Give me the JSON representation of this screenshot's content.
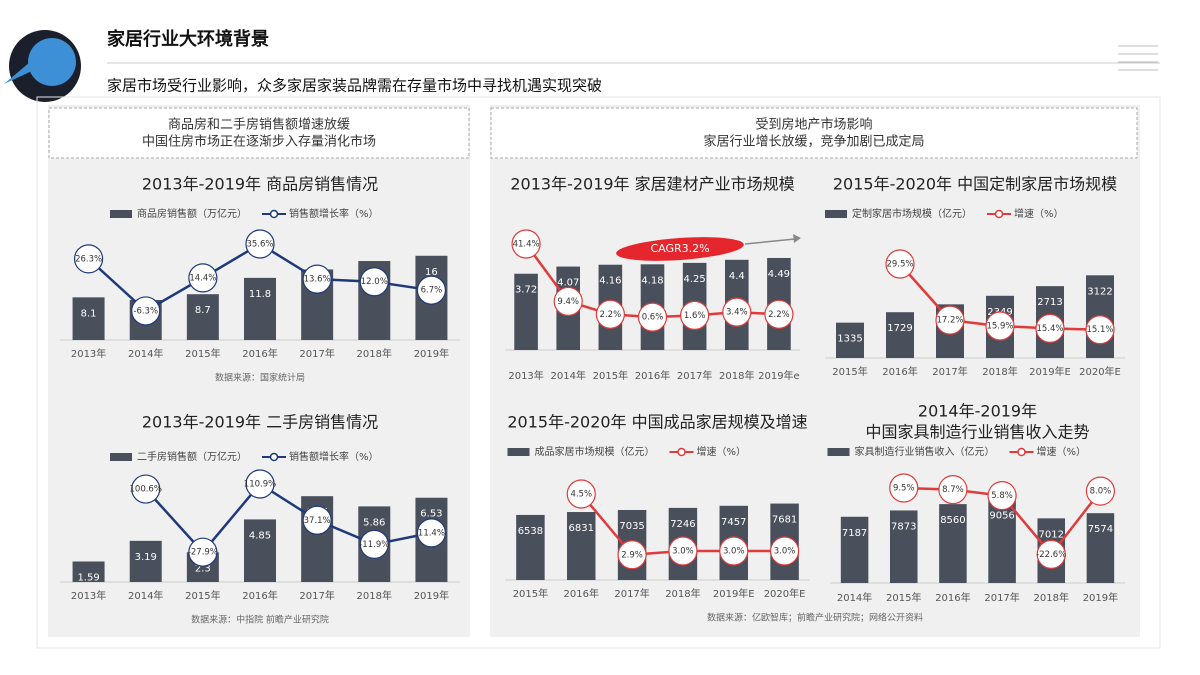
{
  "header": {
    "title": "家居行业大环境背景",
    "subtitle": "家居市场受行业影响，众多家居家装品牌需在存量市场中寻找机遇实现突破"
  },
  "panels": [
    {
      "heading": [
        "商品房和二手房销售额增速放缓",
        "中国住房市场正在逐渐步入存量消化市场"
      ]
    },
    {
      "heading": [
        "受到房地产市场影响",
        "家居行业增长放缓，竞争加剧已成定局"
      ],
      "source": "数据来源：亿欧智库；前瞻产业研究院；网络公开资料"
    }
  ],
  "chart_data": [
    {
      "type": "combo",
      "title": [
        "2013年-2019年 商品房销售情况"
      ],
      "source": "数据来源：国家统计局",
      "categories": [
        "2013年",
        "2014年",
        "2015年",
        "2016年",
        "2017年",
        "2018年",
        "2019年"
      ],
      "series": [
        {
          "name": "商品房销售额（万亿元）",
          "type": "bar",
          "color": "#4a4f5c",
          "values": [
            8.1,
            7.6,
            8.7,
            11.8,
            13.4,
            15,
            16
          ]
        },
        {
          "name": "销售额增长率（%）",
          "type": "line",
          "color": "#1f3a7a",
          "values": [
            26.3,
            -6.3,
            14.4,
            35.6,
            13.6,
            12.0,
            6.7
          ],
          "value_labels": [
            "26.3%",
            "-6.3%",
            "14.4%",
            "35.6%",
            "13.6%",
            "12.0%",
            "6.7%"
          ]
        }
      ]
    },
    {
      "type": "combo",
      "title": [
        "2013年-2019年 二手房销售情况"
      ],
      "source": "数据来源：中指院 前瞻产业研究院",
      "categories": [
        "2013年",
        "2014年",
        "2015年",
        "2016年",
        "2017年",
        "2018年",
        "2019年"
      ],
      "series": [
        {
          "name": "二手房销售额（万亿元）",
          "type": "bar",
          "color": "#4a4f5c",
          "values": [
            1.59,
            3.19,
            2.3,
            4.85,
            6.65,
            5.86,
            6.53
          ]
        },
        {
          "name": "销售额增长率（%）",
          "type": "line",
          "color": "#1f3a7a",
          "values": [
            null,
            100.6,
            -27.9,
            110.9,
            37.1,
            -11.9,
            11.4
          ],
          "value_labels": [
            null,
            "100.6%",
            "-27.9%",
            "110.9%",
            "37.1%",
            "-11.9%",
            "11.4%"
          ]
        }
      ]
    },
    {
      "type": "combo",
      "title": [
        "2013年-2019年 家居建材产业市场规模"
      ],
      "annotation": "CAGR3.2%",
      "categories": [
        "2013年",
        "2014年",
        "2015年",
        "2016年",
        "2017年",
        "2018年",
        "2019年e"
      ],
      "series": [
        {
          "type": "bar",
          "color": "#4a4f5c",
          "values": [
            3.72,
            4.07,
            4.16,
            4.18,
            4.25,
            4.4,
            4.49
          ]
        },
        {
          "type": "line",
          "color": "#e03a3a",
          "values": [
            41.4,
            9.4,
            2.2,
            0.6,
            1.6,
            3.4,
            2.2
          ],
          "value_labels": [
            "41.4%",
            "9.4%",
            "2.2%",
            "0.6%",
            "1.6%",
            "3.4%",
            "2.2%"
          ]
        }
      ]
    },
    {
      "type": "combo",
      "title": [
        "2015年-2020年 中国定制家居市场规模"
      ],
      "categories": [
        "2015年",
        "2016年",
        "2017年",
        "2018年",
        "2019年E",
        "2020年E"
      ],
      "series": [
        {
          "name": "定制家居市场规模（亿元）",
          "type": "bar",
          "color": "#4a4f5c",
          "values": [
            1335,
            1729,
            2026,
            2349,
            2713,
            3122
          ]
        },
        {
          "name": "增速（%）",
          "type": "line",
          "color": "#e03a3a",
          "values": [
            null,
            29.5,
            17.2,
            15.9,
            15.4,
            15.1
          ],
          "value_labels": [
            null,
            "29.5%",
            "17.2%",
            "15.9%",
            "15.4%",
            "15.1%"
          ]
        }
      ]
    },
    {
      "type": "combo",
      "title": [
        "2015年-2020年 中国成品家居规模及增速"
      ],
      "categories": [
        "2015年",
        "2016年",
        "2017年",
        "2018年",
        "2019年E",
        "2020年E"
      ],
      "series": [
        {
          "name": "成品家居市场规模（亿元）",
          "type": "bar",
          "color": "#4a4f5c",
          "values": [
            6538,
            6831,
            7035,
            7246,
            7457,
            7681
          ]
        },
        {
          "name": "增速（%）",
          "type": "line",
          "color": "#e03a3a",
          "values": [
            null,
            4.5,
            2.9,
            3.0,
            3.0,
            3.0
          ],
          "value_labels": [
            null,
            "4.5%",
            "2.9%",
            "3.0%",
            "3.0%",
            "3.0%"
          ]
        }
      ]
    },
    {
      "type": "combo",
      "title": [
        "2014年-2019年",
        "中国家具制造行业销售收入走势"
      ],
      "categories": [
        "2014年",
        "2015年",
        "2016年",
        "2017年",
        "2018年",
        "2019年"
      ],
      "series": [
        {
          "name": "家具制造行业销售收入（亿元）",
          "type": "bar",
          "color": "#4a4f5c",
          "values": [
            7187,
            7873,
            8560,
            9056,
            7012,
            7574
          ]
        },
        {
          "name": "增速（%）",
          "type": "line",
          "color": "#e03a3a",
          "values": [
            null,
            9.5,
            8.7,
            5.8,
            -22.6,
            8.0
          ],
          "value_labels": [
            null,
            "9.5%",
            "8.7%",
            "5.8%",
            "-22.6%",
            "8.0%"
          ]
        }
      ]
    }
  ]
}
